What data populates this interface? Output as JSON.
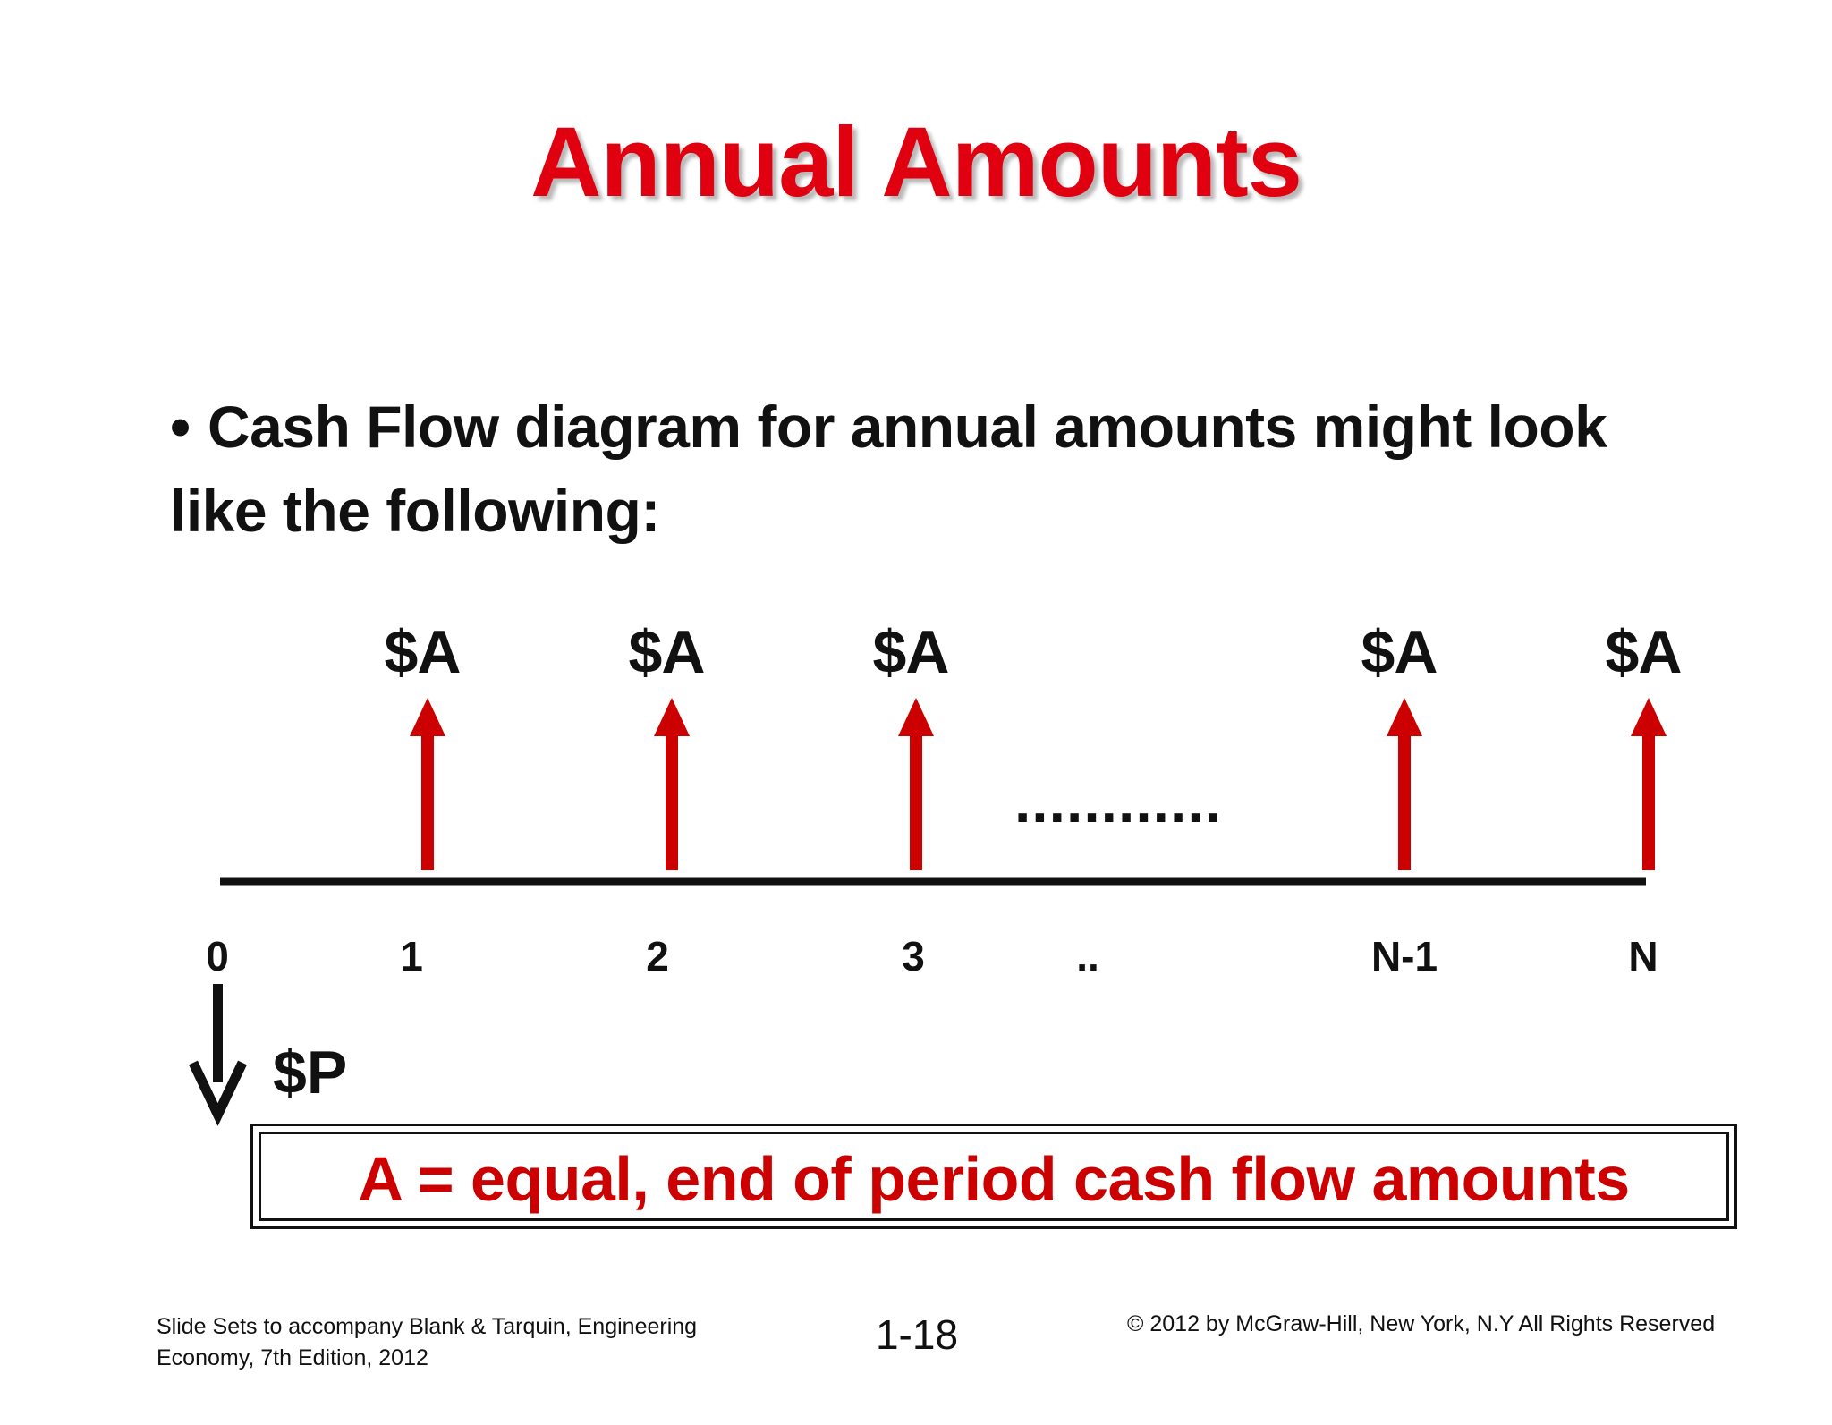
{
  "slide": {
    "title": "Annual Amounts",
    "bullet": "Cash Flow diagram for annual amounts might look like the following:",
    "bullet_marker": "•"
  },
  "diagram": {
    "flow_labels": [
      "$A",
      "$A",
      "$A",
      "$A",
      "$A"
    ],
    "continuation": "............",
    "periods": [
      "0",
      "1",
      "2",
      "3",
      "..",
      "N-1",
      "N"
    ],
    "present_label": "$P",
    "colors": {
      "up_arrow": "#cc0000",
      "down_arrow": "#111111",
      "axis": "#111111"
    }
  },
  "definition": {
    "text": "A = equal, end of period cash flow amounts"
  },
  "footer": {
    "left": "Slide Sets  to accompany Blank & Tarquin, Engineering Economy, 7th Edition, 2012",
    "page": "1-18",
    "right": "© 2012 by McGraw-Hill, New York, N.Y All Rights Reserved"
  }
}
